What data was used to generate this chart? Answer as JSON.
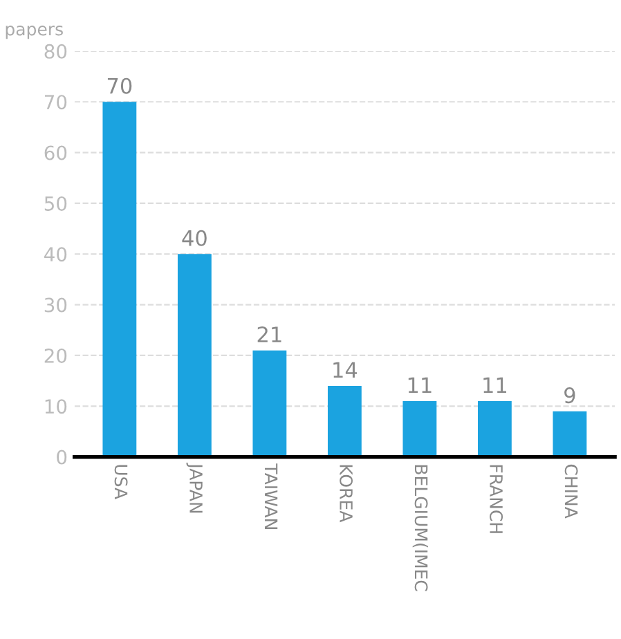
{
  "chart_data": {
    "type": "bar",
    "ylabel": "papers",
    "categories": [
      "USA",
      "JAPAN",
      "TAIWAN",
      "KOREA",
      "BELGIUM(IMEC",
      "FRANCH",
      "CHINA"
    ],
    "values": [
      70,
      40,
      21,
      14,
      11,
      11,
      9
    ],
    "color": "#1ba3e0",
    "ylim": [
      0,
      80
    ],
    "yticks": [
      0,
      10,
      20,
      30,
      40,
      50,
      60,
      70,
      80
    ],
    "grid": "y",
    "data_labels": true
  }
}
